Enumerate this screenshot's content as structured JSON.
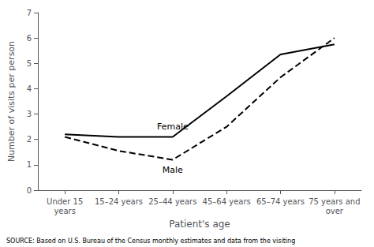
{
  "chart_data": {
    "type": "line",
    "categories": [
      "Under 15\nyears",
      "15–24 years",
      "25–44 years",
      "45–64 years",
      "65–74 years",
      "75 years and\nover"
    ],
    "series": [
      {
        "name": "Female",
        "color": "#000000",
        "line_style": "solid",
        "values": [
          2.2,
          2.1,
          2.1,
          3.7,
          5.35,
          5.75
        ]
      },
      {
        "name": "Male",
        "color": "#000000",
        "line_style": "dashed",
        "values": [
          2.1,
          1.55,
          1.2,
          2.5,
          4.45,
          6.0
        ]
      }
    ],
    "xlabel": "Patient's age",
    "ylabel": "Number of visits per person",
    "ylim": [
      0,
      7
    ],
    "yticks": [
      0,
      1,
      2,
      3,
      4,
      5,
      6,
      7
    ],
    "grid": false,
    "annotations": [
      "SOURCE: Based on U.S. Bureau of the Census monthly estimates and data from the visiting"
    ]
  }
}
